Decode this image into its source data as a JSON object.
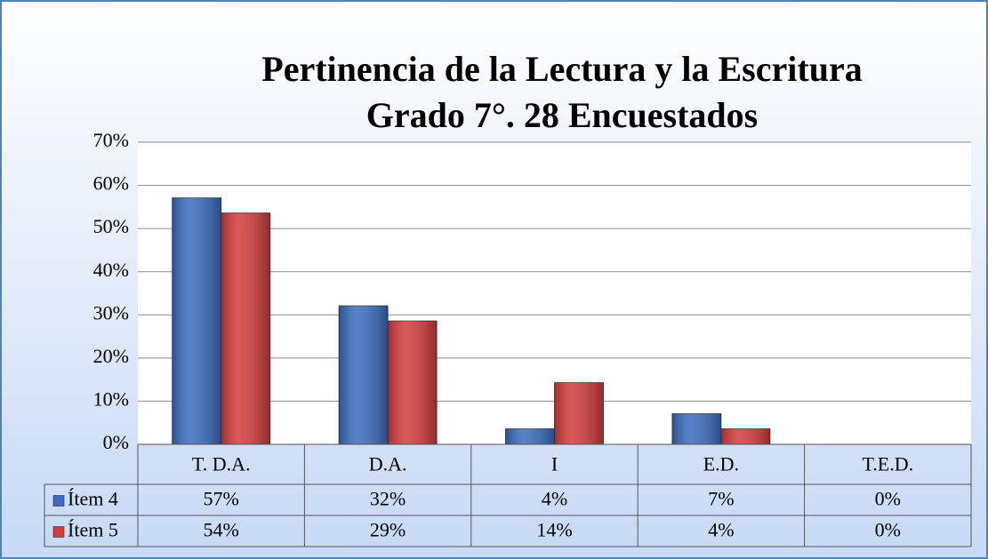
{
  "chart_data": {
    "type": "bar",
    "title": "Pertinencia de la Lectura y la Escritura",
    "subtitle": "Grado 7°. 28 Encuestados",
    "categories": [
      "T. D.A.",
      "D.A.",
      "I",
      "E.D.",
      "T.E.D."
    ],
    "series": [
      {
        "name": "Ítem 4",
        "color": "#3a6cbf",
        "values": [
          57.1,
          32.1,
          3.6,
          7.1,
          0
        ],
        "value_labels": [
          "57%",
          "32%",
          "4%",
          "7%",
          "0%"
        ]
      },
      {
        "name": "Ítem 5",
        "color": "#d43b3b",
        "values": [
          53.6,
          28.6,
          14.3,
          3.6,
          0
        ],
        "value_labels": [
          "54%",
          "29%",
          "14%",
          "4%",
          "0%"
        ]
      }
    ],
    "ylim": [
      0,
      70
    ],
    "yticks": [
      {
        "value": 0,
        "label": "0%"
      },
      {
        "value": 10,
        "label": "10%"
      },
      {
        "value": 20,
        "label": "20%"
      },
      {
        "value": 30,
        "label": "30%"
      },
      {
        "value": 40,
        "label": "40%"
      },
      {
        "value": 50,
        "label": "50%"
      },
      {
        "value": 60,
        "label": "60%"
      },
      {
        "value": 70,
        "label": "70%"
      }
    ],
    "grid": true
  }
}
